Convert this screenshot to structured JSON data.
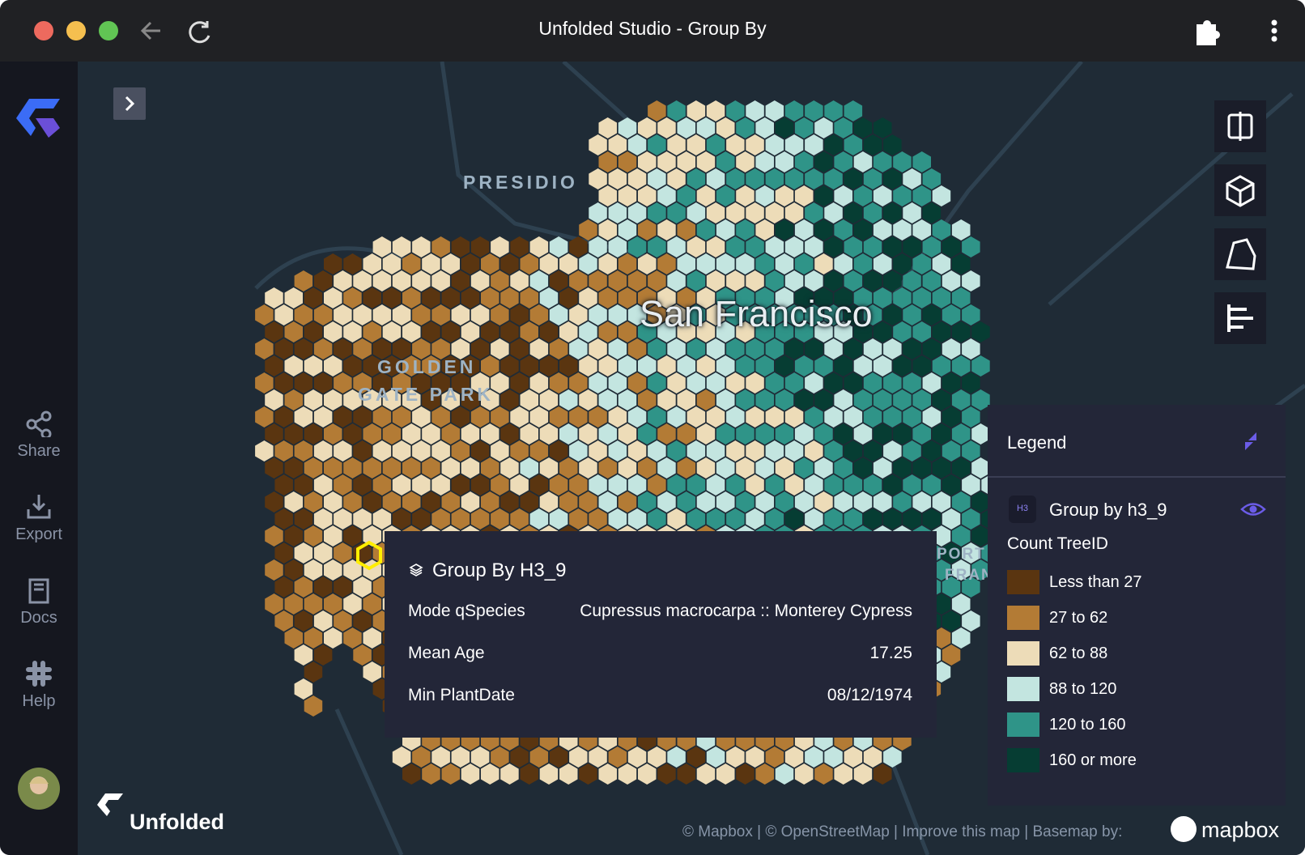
{
  "window": {
    "title": "Unfolded Studio - Group By"
  },
  "sidebar": {
    "items": [
      "Share",
      "Export",
      "Docs",
      "Help"
    ]
  },
  "map": {
    "labels": {
      "presidio": "PRESIDIO",
      "golden": "GOLDEN",
      "gate_park": "GATE PARK",
      "city": "San Francisco",
      "port": "PORT",
      "fran": "FRAN"
    },
    "brand": "Unfolded",
    "attribution": "© Mapbox | © OpenStreetMap | Improve this map | Basemap by:",
    "basemap_logo": "mapbox"
  },
  "tooltip": {
    "title": "Group By H3_9",
    "rows": [
      {
        "label": "Mode qSpecies",
        "value": "Cupressus macrocarpa :: Monterey Cypress"
      },
      {
        "label": "Mean Age",
        "value": "17.25"
      },
      {
        "label": "Min PlantDate",
        "value": "08/12/1974"
      }
    ]
  },
  "legend": {
    "title": "Legend",
    "layer": "Group by h3_9",
    "badge": "H3",
    "field": "Count TreeID",
    "items": [
      {
        "label": "Less than 27",
        "color": "#5a3510"
      },
      {
        "label": "27 to 62",
        "color": "#b37b35"
      },
      {
        "label": "62 to 88",
        "color": "#eddcb8"
      },
      {
        "label": "88 to 120",
        "color": "#c3e5e0"
      },
      {
        "label": "120 to 160",
        "color": "#2f9488"
      },
      {
        "label": "160 or more",
        "color": "#063d33"
      }
    ]
  }
}
